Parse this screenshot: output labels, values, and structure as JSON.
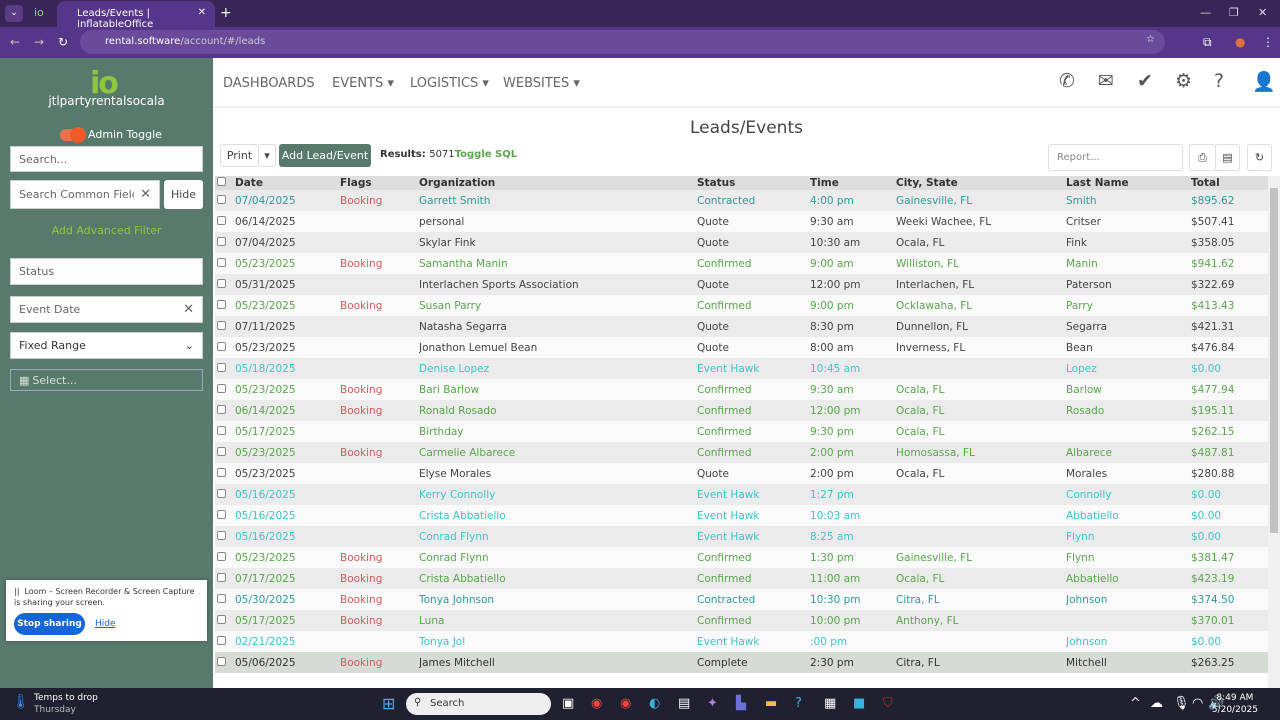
{
  "browser": {
    "tab_title": "Leads/Events | InflatableOffice",
    "url_host": "rental.software",
    "url_path": "/account/#/leads"
  },
  "sidebar": {
    "logo": "io",
    "account": "jtlpartyrentalsocala",
    "admin_toggle": "Admin Toggle",
    "admin_on": true,
    "search_placeholder": "Search...",
    "common_fields_placeholder": "Search Common Fields",
    "hide": "Hide",
    "add_filter": "Add Advanced Filter",
    "status_placeholder": "Status",
    "event_date": "Event Date",
    "range_select": "Fixed Range",
    "date_placeholder": "Select..."
  },
  "nav": {
    "items": [
      "DASHBOARDS",
      "EVENTS ▾",
      "LOGISTICS ▾",
      "WEBSITES ▾"
    ],
    "icons": [
      "phone-icon",
      "envelope-icon",
      "check-icon",
      "gear-icon",
      "question-icon",
      "user-icon"
    ]
  },
  "page": {
    "title": "Leads/Events",
    "print": "Print",
    "add": "Add Lead/Event",
    "results_label": "Results:",
    "results_count": "5071",
    "toggle_sql": "Toggle SQL",
    "report_placeholder": "Report..."
  },
  "table": {
    "headers": [
      "Date",
      "Flags",
      "Organization",
      "Status",
      "Time",
      "City, State",
      "Last Name",
      "Total"
    ],
    "rows": [
      [
        "07/04/2025",
        "Booking",
        "Garrett Smith",
        "Contracted",
        "4:00 pm",
        "Gainesville, FL",
        "Smith",
        "$895.62"
      ],
      [
        "06/14/2025",
        "",
        "personal",
        "Quote",
        "9:30 am",
        "Weeki Wachee, FL",
        "Critser",
        "$507.41"
      ],
      [
        "07/04/2025",
        "",
        "Skylar Fink",
        "Quote",
        "10:30 am",
        "Ocala, FL",
        "Fink",
        "$358.05"
      ],
      [
        "05/23/2025",
        "Booking",
        "Samantha Manin",
        "Confirmed",
        "9:00 am",
        "Williston, FL",
        "Manin",
        "$941.62"
      ],
      [
        "05/31/2025",
        "",
        "Interlachen Sports Association",
        "Quote",
        "12:00 pm",
        "Interlachen, FL",
        "Paterson",
        "$322.69"
      ],
      [
        "05/23/2025",
        "Booking",
        "Susan Parry",
        "Confirmed",
        "9:00 pm",
        "Ocklawaha, FL",
        "Parry",
        "$413.43"
      ],
      [
        "07/11/2025",
        "",
        "Natasha Segarra",
        "Quote",
        "8:30 pm",
        "Dunnellon, FL",
        "Segarra",
        "$421.31"
      ],
      [
        "05/23/2025",
        "",
        "Jonathon Lemuel Bean",
        "Quote",
        "8:00 am",
        "Inverness, FL",
        "Bean",
        "$476.84"
      ],
      [
        "05/18/2025",
        "",
        "Denise Lopez",
        "Event Hawk",
        "10:45 am",
        "",
        "Lopez",
        "$0.00"
      ],
      [
        "05/23/2025",
        "Booking",
        "Bari Barlow",
        "Confirmed",
        "9:30 am",
        "Ocala, FL",
        "Barlow",
        "$477.94"
      ],
      [
        "06/14/2025",
        "Booking",
        "Ronald Rosado",
        "Confirmed",
        "12:00 pm",
        "Ocala, FL",
        "Rosado",
        "$195.11"
      ],
      [
        "05/17/2025",
        "",
        "Birthday",
        "Confirmed",
        "9:30 pm",
        "Ocala, FL",
        "",
        "$262.15"
      ],
      [
        "05/23/2025",
        "Booking",
        "Carmelie Albarece",
        "Confirmed",
        "2:00 pm",
        "Homosassa, FL",
        "Albarece",
        "$487.81"
      ],
      [
        "05/23/2025",
        "",
        "Elyse Morales",
        "Quote",
        "2:00 pm",
        "Ocala, FL",
        "Morales",
        "$280.88"
      ],
      [
        "05/16/2025",
        "",
        "Kerry Connolly",
        "Event Hawk",
        "1:27 pm",
        "",
        "Connolly",
        "$0.00"
      ],
      [
        "05/16/2025",
        "",
        "Crista Abbatiello",
        "Event Hawk",
        "10:03 am",
        "",
        "Abbatiello",
        "$0.00"
      ],
      [
        "05/16/2025",
        "",
        "Conrad Flynn",
        "Event Hawk",
        "8:25 am",
        "",
        "Flynn",
        "$0.00"
      ],
      [
        "05/23/2025",
        "Booking",
        "Conrad Flynn",
        "Confirmed",
        "1:30 pm",
        "Gainesville, FL",
        "Flynn",
        "$381.47"
      ],
      [
        "07/17/2025",
        "Booking",
        "Crista Abbatiello",
        "Confirmed",
        "11:00 am",
        "Ocala, FL",
        "Abbatiello",
        "$423.19"
      ],
      [
        "05/30/2025",
        "Booking",
        "Tonya Johnson",
        "Contracted",
        "10:30 pm",
        "Citra, FL",
        "Johnson",
        "$374.50"
      ],
      [
        "05/17/2025",
        "Booking",
        "Luna",
        "Confirmed",
        "10:00 pm",
        "Anthony, FL",
        "",
        "$370.01"
      ],
      [
        "02/21/2025",
        "",
        "Tonya Jol",
        "Event Hawk",
        ":00 pm",
        "",
        "Johnson",
        "$0.00"
      ],
      [
        "05/06/2025",
        "Booking",
        "James Mitchell",
        "Complete",
        "2:30 pm",
        "Citra, FL",
        "Mitchell",
        "$263.25"
      ]
    ]
  },
  "colors": {
    "sidebar": "#587a6c",
    "accent_green": "#8dc63f",
    "confirmed": "#58a64b",
    "contracted": "#2e9a94",
    "event_hawk": "#3cc4cc",
    "booking": "#cf5c5c"
  },
  "loom": {
    "message": "Loom – Screen Recorder & Screen Capture is sharing your screen.",
    "stop": "Stop sharing",
    "hide": "Hide"
  },
  "taskbar": {
    "weather_title": "Temps to drop",
    "weather_sub": "Thursday",
    "search": "Search",
    "time": "8:49 AM",
    "date": "5/20/2025"
  }
}
